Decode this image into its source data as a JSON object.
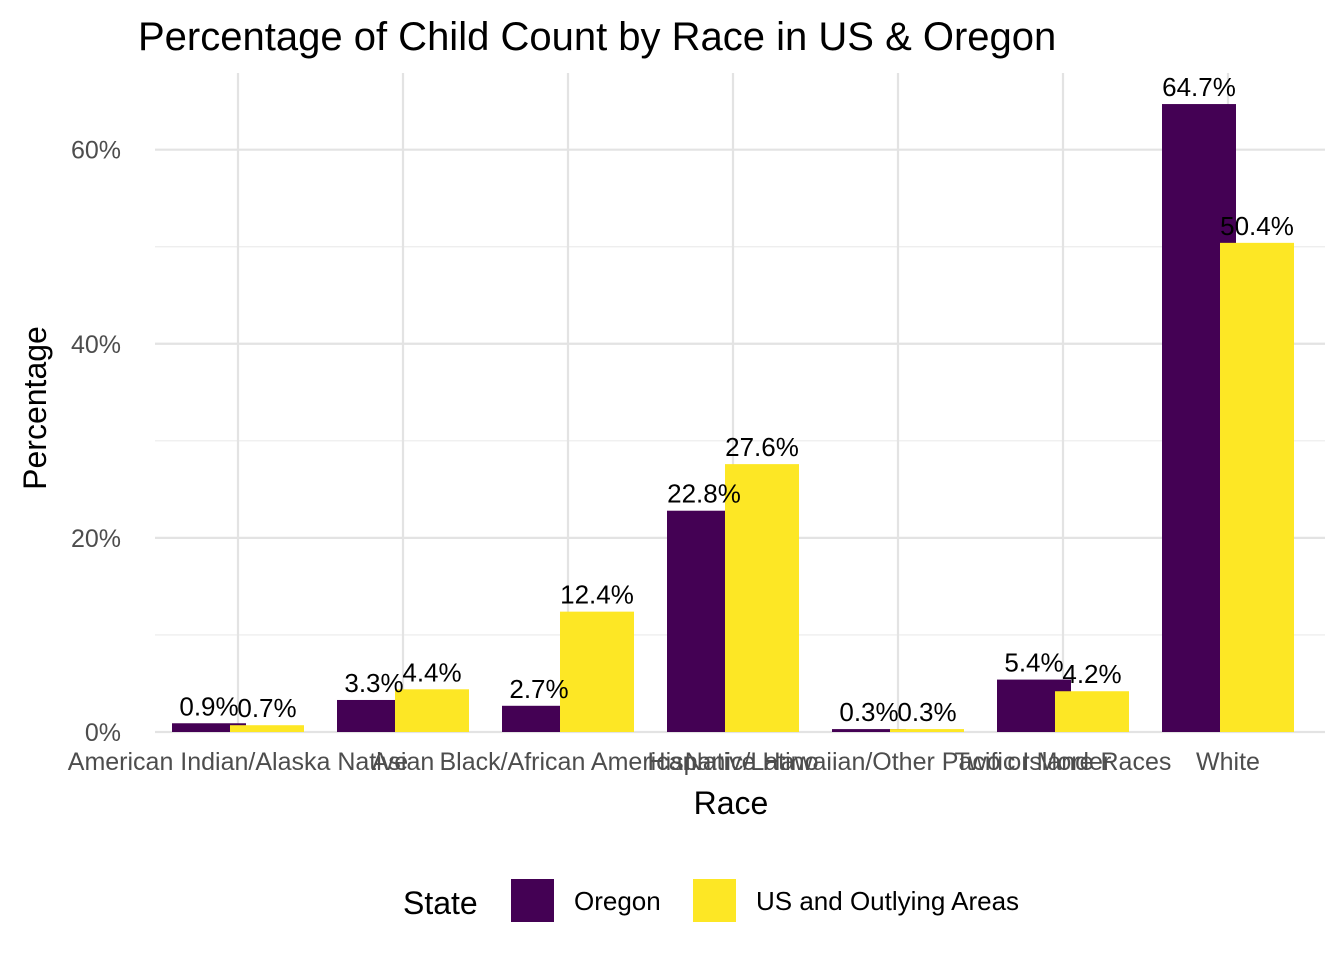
{
  "chart_data": {
    "type": "bar",
    "title": "Percentage of Child Count by Race in US & Oregon",
    "xlabel": "Race",
    "ylabel": "Percentage",
    "categories": [
      "American Indian/Alaska Native",
      "Asian",
      "Black/African American",
      "Hispanic/Latino",
      "Native Hawaiian/Other Pacific Islander",
      "Two or More Races",
      "White"
    ],
    "series": [
      {
        "name": "Oregon",
        "color": "#440154",
        "values": [
          0.9,
          3.3,
          2.7,
          22.8,
          0.3,
          5.4,
          64.7
        ],
        "labels": [
          "0.9%",
          "3.3%",
          "2.7%",
          "22.8%",
          "0.3%",
          "5.4%",
          "64.7%"
        ]
      },
      {
        "name": "US and Outlying Areas",
        "color": "#FDE725",
        "values": [
          0.7,
          4.4,
          12.4,
          27.6,
          0.3,
          4.2,
          50.4
        ],
        "labels": [
          "0.7%",
          "4.4%",
          "12.4%",
          "27.6%",
          "0.3%",
          "4.2%",
          "50.4%"
        ]
      }
    ],
    "ylim": [
      0,
      67.9
    ],
    "y_ticks": [
      0,
      20,
      40,
      60
    ],
    "y_tick_labels": [
      "0%",
      "20%",
      "40%",
      "60%"
    ],
    "grid": true,
    "legend": {
      "title": "State",
      "position": "bottom"
    }
  }
}
